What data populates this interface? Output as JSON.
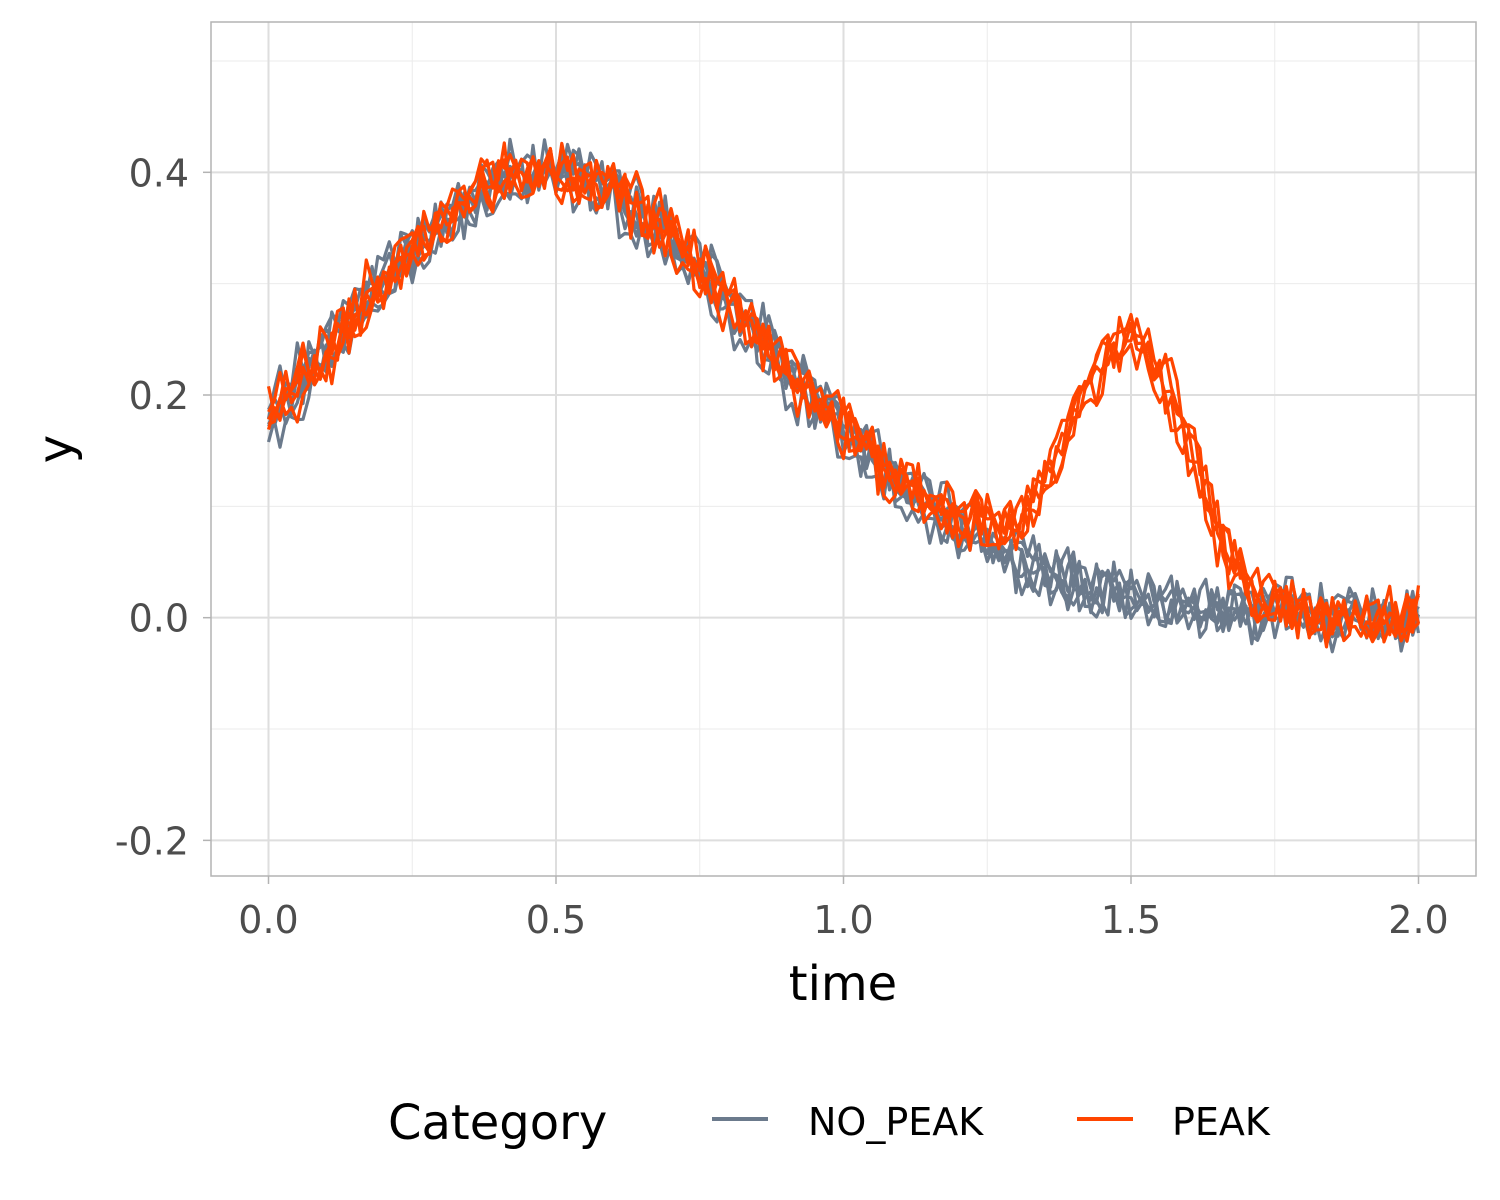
{
  "chart_data": {
    "type": "line",
    "xlabel": "time",
    "ylabel": "y",
    "xlim": [
      -0.1,
      2.1
    ],
    "ylim": [
      -0.232,
      0.535
    ],
    "x_ticks": [
      0.0,
      0.5,
      1.0,
      1.5,
      2.0
    ],
    "x_tick_labels": [
      "0.0",
      "0.5",
      "1.0",
      "1.5",
      "2.0"
    ],
    "y_ticks": [
      -0.2,
      0.0,
      0.2,
      0.4
    ],
    "y_tick_labels": [
      "-0.2",
      "0.0",
      "0.2",
      "0.4"
    ],
    "grid": true,
    "legend": {
      "title": "Category",
      "position": "bottom",
      "entries": [
        {
          "label": "NO_PEAK",
          "color": "#6b7a8c"
        },
        {
          "label": "PEAK",
          "color": "#ff4500"
        }
      ]
    },
    "series": [
      {
        "category": "NO_PEAK",
        "color": "#6b7a8c",
        "x": [
          0.0,
          0.1,
          0.2,
          0.3,
          0.4,
          0.5,
          0.6,
          0.7,
          0.8,
          0.9,
          1.0,
          1.1,
          1.2,
          1.3,
          1.4,
          1.5,
          1.6,
          1.7,
          1.8,
          1.9,
          2.0
        ],
        "y": [
          0.17,
          0.24,
          0.3,
          0.35,
          0.39,
          0.4,
          0.38,
          0.34,
          0.28,
          0.22,
          0.17,
          0.12,
          0.08,
          0.05,
          0.03,
          0.02,
          0.01,
          0.01,
          0.0,
          0.0,
          0.0
        ]
      },
      {
        "category": "NO_PEAK",
        "color": "#6b7a8c",
        "x": [
          0.0,
          0.1,
          0.2,
          0.3,
          0.4,
          0.5,
          0.6,
          0.7,
          0.8,
          0.9,
          1.0,
          1.1,
          1.2,
          1.3,
          1.4,
          1.5,
          1.6,
          1.7,
          1.8,
          1.9,
          2.0
        ],
        "y": [
          0.19,
          0.25,
          0.31,
          0.36,
          0.4,
          0.41,
          0.39,
          0.35,
          0.29,
          0.23,
          0.18,
          0.13,
          0.09,
          0.06,
          0.04,
          0.02,
          0.02,
          0.01,
          0.01,
          0.0,
          0.01
        ]
      },
      {
        "category": "NO_PEAK",
        "color": "#6b7a8c",
        "x": [
          0.0,
          0.1,
          0.2,
          0.3,
          0.4,
          0.5,
          0.6,
          0.7,
          0.8,
          0.9,
          1.0,
          1.1,
          1.2,
          1.3,
          1.4,
          1.5,
          1.6,
          1.7,
          1.8,
          1.9,
          2.0
        ],
        "y": [
          0.16,
          0.23,
          0.29,
          0.34,
          0.38,
          0.39,
          0.37,
          0.33,
          0.27,
          0.21,
          0.16,
          0.11,
          0.07,
          0.04,
          0.02,
          0.01,
          0.0,
          0.0,
          -0.01,
          -0.01,
          -0.01
        ]
      },
      {
        "category": "NO_PEAK",
        "color": "#6b7a8c",
        "x": [
          0.0,
          0.1,
          0.2,
          0.3,
          0.4,
          0.5,
          0.6,
          0.7,
          0.8,
          0.9,
          1.0,
          1.1,
          1.2,
          1.3,
          1.4,
          1.5,
          1.6,
          1.7,
          1.8,
          1.9,
          2.0
        ],
        "y": [
          0.18,
          0.24,
          0.3,
          0.35,
          0.39,
          0.41,
          0.38,
          0.34,
          0.28,
          0.22,
          0.17,
          0.12,
          0.08,
          0.05,
          0.03,
          0.02,
          0.01,
          0.01,
          0.0,
          0.0,
          0.0
        ]
      },
      {
        "category": "NO_PEAK",
        "color": "#6b7a8c",
        "x": [
          0.0,
          0.1,
          0.2,
          0.3,
          0.4,
          0.5,
          0.6,
          0.7,
          0.8,
          0.9,
          1.0,
          1.1,
          1.2,
          1.3,
          1.4,
          1.5,
          1.6,
          1.7,
          1.8,
          1.9,
          2.0
        ],
        "y": [
          0.18,
          0.25,
          0.31,
          0.35,
          0.39,
          0.4,
          0.38,
          0.35,
          0.29,
          0.23,
          0.17,
          0.12,
          0.08,
          0.05,
          0.03,
          0.02,
          0.01,
          0.01,
          0.01,
          0.0,
          0.0
        ]
      },
      {
        "category": "NO_PEAK",
        "color": "#6b7a8c",
        "x": [
          0.0,
          0.1,
          0.2,
          0.3,
          0.4,
          0.5,
          0.6,
          0.7,
          0.8,
          0.9,
          1.0,
          1.1,
          1.2,
          1.3,
          1.4,
          1.5,
          1.6,
          1.7,
          1.8,
          1.9,
          2.0
        ],
        "y": [
          0.17,
          0.23,
          0.3,
          0.36,
          0.4,
          0.41,
          0.39,
          0.34,
          0.28,
          0.22,
          0.17,
          0.12,
          0.08,
          0.05,
          0.03,
          0.01,
          0.01,
          0.0,
          0.0,
          0.0,
          0.0
        ]
      },
      {
        "category": "PEAK",
        "color": "#ff4500",
        "x": [
          0.0,
          0.1,
          0.2,
          0.3,
          0.4,
          0.5,
          0.6,
          0.7,
          0.8,
          0.9,
          1.0,
          1.1,
          1.2,
          1.3,
          1.35,
          1.4,
          1.45,
          1.5,
          1.55,
          1.6,
          1.65,
          1.7,
          1.8,
          1.9,
          2.0
        ],
        "y": [
          0.18,
          0.24,
          0.3,
          0.35,
          0.39,
          0.4,
          0.38,
          0.34,
          0.28,
          0.22,
          0.17,
          0.12,
          0.09,
          0.08,
          0.12,
          0.18,
          0.23,
          0.25,
          0.21,
          0.14,
          0.07,
          0.03,
          0.0,
          0.0,
          0.0
        ]
      },
      {
        "category": "PEAK",
        "color": "#ff4500",
        "x": [
          0.0,
          0.1,
          0.2,
          0.3,
          0.4,
          0.5,
          0.6,
          0.7,
          0.8,
          0.9,
          1.0,
          1.1,
          1.2,
          1.3,
          1.35,
          1.4,
          1.45,
          1.5,
          1.55,
          1.6,
          1.65,
          1.7,
          1.8,
          1.9,
          2.0
        ],
        "y": [
          0.19,
          0.25,
          0.31,
          0.36,
          0.4,
          0.41,
          0.39,
          0.35,
          0.29,
          0.23,
          0.17,
          0.13,
          0.09,
          0.09,
          0.13,
          0.19,
          0.24,
          0.26,
          0.23,
          0.16,
          0.08,
          0.03,
          0.01,
          0.0,
          0.01
        ]
      },
      {
        "category": "PEAK",
        "color": "#ff4500",
        "x": [
          0.0,
          0.1,
          0.2,
          0.3,
          0.4,
          0.5,
          0.6,
          0.7,
          0.8,
          0.9,
          1.0,
          1.1,
          1.2,
          1.3,
          1.35,
          1.4,
          1.45,
          1.5,
          1.55,
          1.6,
          1.65,
          1.7,
          1.8,
          1.9,
          2.0
        ],
        "y": [
          0.17,
          0.23,
          0.29,
          0.35,
          0.39,
          0.4,
          0.38,
          0.34,
          0.28,
          0.22,
          0.17,
          0.12,
          0.08,
          0.07,
          0.11,
          0.17,
          0.22,
          0.24,
          0.22,
          0.15,
          0.09,
          0.04,
          0.0,
          -0.01,
          0.0
        ]
      },
      {
        "category": "PEAK",
        "color": "#ff4500",
        "x": [
          0.0,
          0.1,
          0.2,
          0.3,
          0.4,
          0.5,
          0.6,
          0.7,
          0.8,
          0.9,
          1.0,
          1.1,
          1.2,
          1.3,
          1.35,
          1.4,
          1.45,
          1.5,
          1.55,
          1.6,
          1.65,
          1.7,
          1.8,
          1.9,
          2.0
        ],
        "y": [
          0.18,
          0.24,
          0.3,
          0.36,
          0.4,
          0.41,
          0.38,
          0.34,
          0.29,
          0.22,
          0.18,
          0.12,
          0.09,
          0.08,
          0.12,
          0.18,
          0.22,
          0.25,
          0.22,
          0.16,
          0.08,
          0.03,
          0.0,
          0.0,
          0.0
        ]
      },
      {
        "category": "PEAK",
        "color": "#ff4500",
        "x": [
          0.0,
          0.1,
          0.2,
          0.3,
          0.4,
          0.5,
          0.6,
          0.7,
          0.8,
          0.9,
          1.0,
          1.1,
          1.2,
          1.3,
          1.35,
          1.4,
          1.45,
          1.5,
          1.55,
          1.6,
          1.65,
          1.7,
          1.8,
          1.9,
          2.0
        ],
        "y": [
          0.18,
          0.24,
          0.3,
          0.35,
          0.39,
          0.4,
          0.38,
          0.34,
          0.28,
          0.22,
          0.17,
          0.12,
          0.09,
          0.08,
          0.11,
          0.17,
          0.23,
          0.26,
          0.23,
          0.17,
          0.08,
          0.03,
          0.0,
          0.0,
          0.0
        ]
      }
    ]
  }
}
